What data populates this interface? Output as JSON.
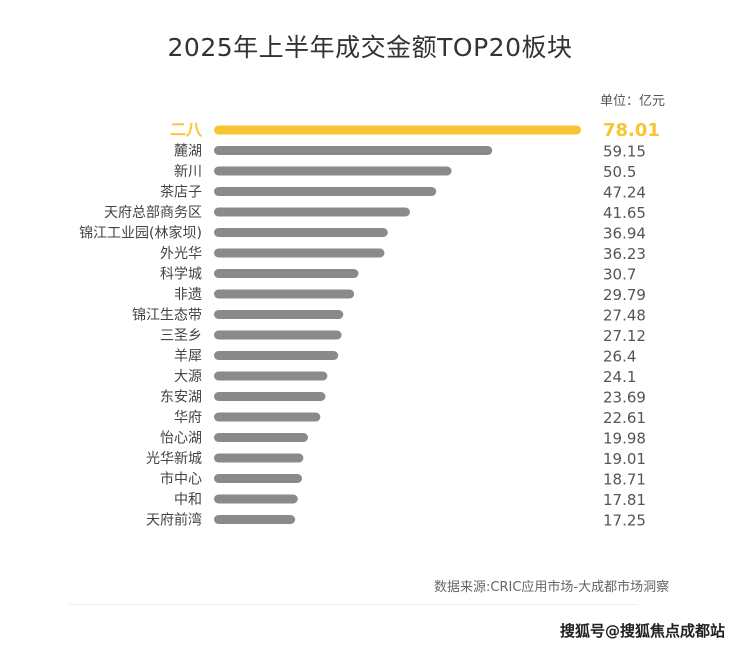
{
  "chart_data": {
    "type": "bar",
    "orientation": "horizontal",
    "title": "2025年上半年成交金额TOP20板块",
    "unit_label": "单位：亿元",
    "categories": [
      "二八",
      "麓湖",
      "新川",
      "茶店子",
      "天府总部商务区",
      "锦江工业园(林家坝)",
      "外光华",
      "科学城",
      "非遗",
      "锦江生态带",
      "三圣乡",
      "羊犀",
      "大源",
      "东安湖",
      "华府",
      "怡心湖",
      "光华新城",
      "市中心",
      "中和",
      "天府前湾"
    ],
    "values": [
      78.01,
      59.15,
      50.5,
      47.24,
      41.65,
      36.94,
      36.23,
      30.7,
      29.79,
      27.48,
      27.12,
      26.4,
      24.1,
      23.69,
      22.61,
      19.98,
      19.01,
      18.71,
      17.81,
      17.25
    ],
    "value_labels": [
      "78.01",
      "59.15",
      "50.5",
      "47.24",
      "41.65",
      "36.94",
      "36.23",
      "30.7",
      "29.79",
      "27.48",
      "27.12",
      "26.4",
      "24.1",
      "23.69",
      "22.61",
      "19.98",
      "19.01",
      "18.71",
      "17.81",
      "17.25"
    ],
    "highlight_color": "#f7c531",
    "bar_color": "#8a8a8a",
    "grid": false
  },
  "source": "数据来源:CRIC应用市场-大成都市场洞察",
  "watermark": "搜狐号@搜狐焦点成都站"
}
